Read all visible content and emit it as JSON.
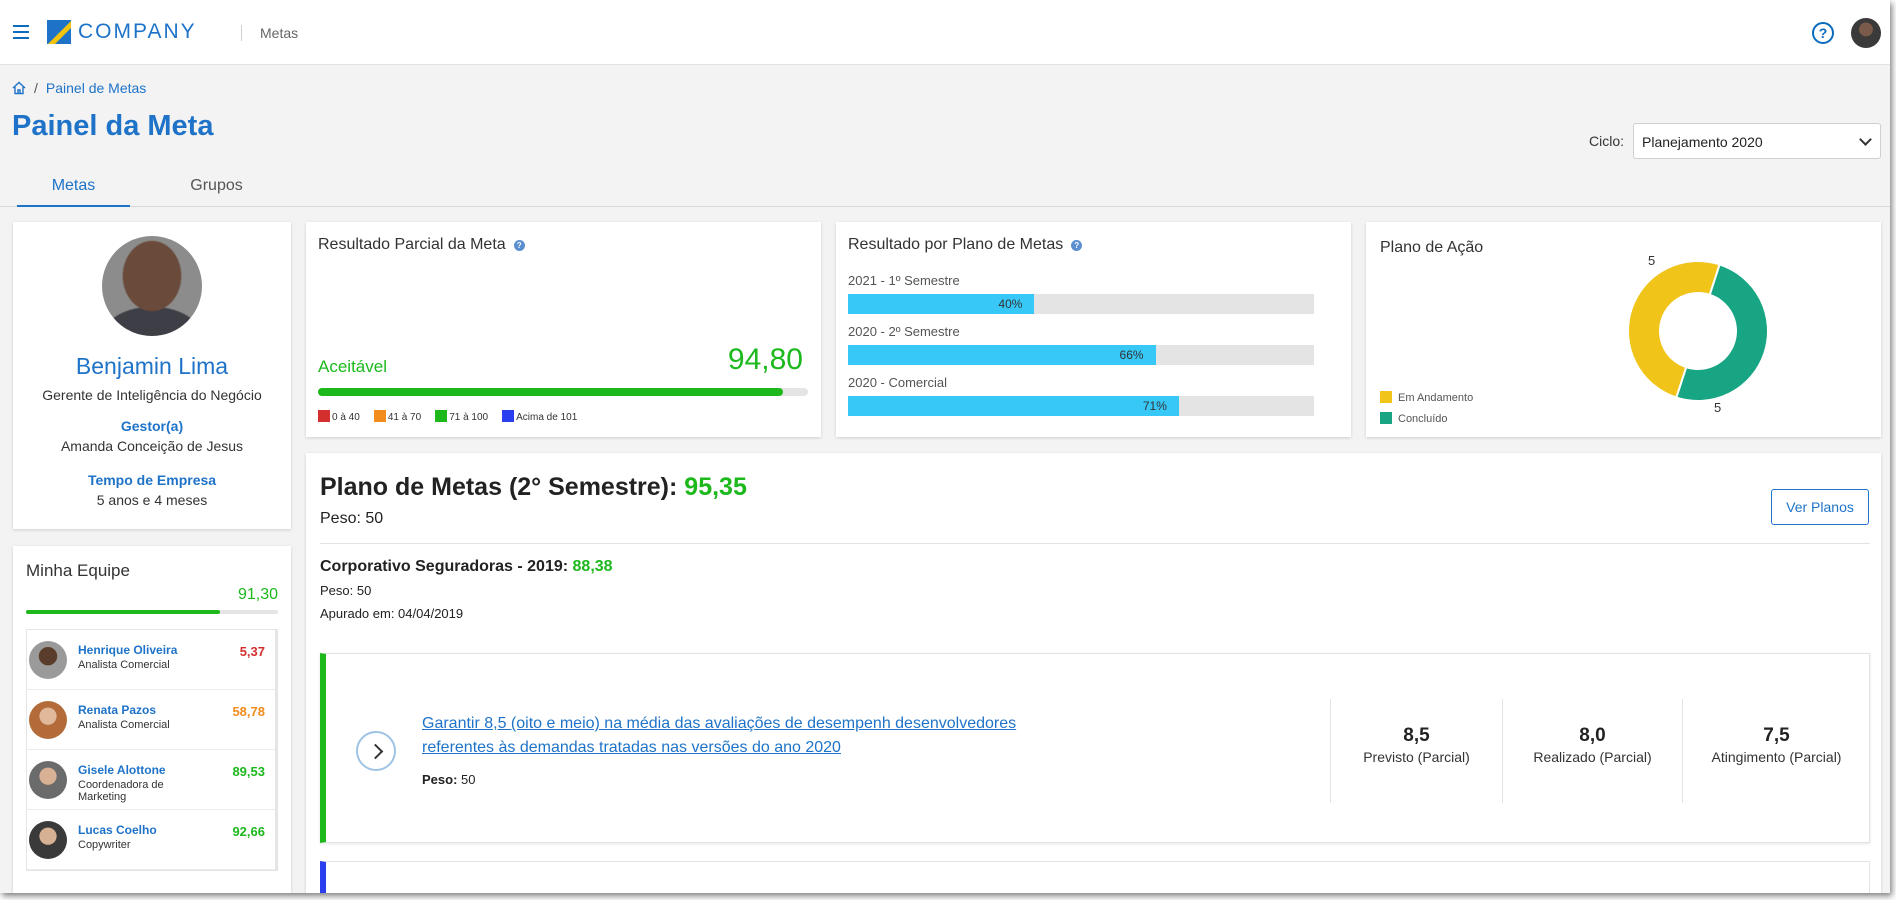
{
  "header": {
    "brand": "COMPANY",
    "module": "Metas"
  },
  "breadcrumb": {
    "current": "Painel de Metas"
  },
  "page": {
    "title": "Painel da Meta",
    "ciclo_label": "Ciclo:",
    "ciclo_value": "Planejamento 2020"
  },
  "tabs": [
    {
      "label": "Metas",
      "active": true
    },
    {
      "label": "Grupos",
      "active": false
    }
  ],
  "profile": {
    "name": "Benjamin Lima",
    "role": "Gerente de Inteligência do Negócio",
    "manager_label": "Gestor(a)",
    "manager_value": "Amanda Conceição de Jesus",
    "tenure_label": "Tempo de Empresa",
    "tenure_value": "5 anos e 4 meses"
  },
  "team": {
    "title": "Minha Equipe",
    "score": "91,30",
    "progress": 0.77,
    "members": [
      {
        "name": "Henrique Oliveira",
        "role": "Analista Comercial",
        "score": "5,37",
        "color": "#d32f2f"
      },
      {
        "name": "Renata Pazos",
        "role": "Analista Comercial",
        "score": "58,78",
        "color": "#f28c1c"
      },
      {
        "name": "Gisele Alottone",
        "role": "Coordenadora de Marketing",
        "score": "89,53",
        "color": "#1cb81c"
      },
      {
        "name": "Lucas Coelho",
        "role": "Copywriter",
        "score": "92,66",
        "color": "#1cb81c"
      }
    ]
  },
  "resultado_parcial": {
    "title": "Resultado Parcial da Meta",
    "status": "Aceitável",
    "value": "94,80",
    "progress": 0.948,
    "legend": [
      {
        "label": "0 à 40",
        "color": "#d32f2f"
      },
      {
        "label": "41 à 70",
        "color": "#f28c1c"
      },
      {
        "label": "71 à 100",
        "color": "#1cb81c"
      },
      {
        "label": "Acima de 101",
        "color": "#2a3ff0"
      }
    ]
  },
  "resultado_plano": {
    "title": "Resultado por Plano de Metas",
    "items": [
      {
        "label": "2021 - 1º Semestre",
        "pct_label": "40%",
        "value": 40
      },
      {
        "label": "2020 - 2º Semestre",
        "pct_label": "66%",
        "value": 66
      },
      {
        "label": "2020 - Comercial",
        "pct_label": "71%",
        "value": 71
      }
    ]
  },
  "plano_acao": {
    "title": "Plano de Ação",
    "legend": [
      {
        "label": "Em Andamento",
        "value": 5,
        "color": "#f0c419"
      },
      {
        "label": "Concluído",
        "value": 5,
        "color": "#17a583"
      }
    ],
    "label_top": "5",
    "label_bottom": "5"
  },
  "plano_metas": {
    "title": "Plano de Metas (2° Semestre):",
    "score": "95,35",
    "peso": "Peso: 50",
    "ver_planos": "Ver Planos",
    "corp_title": "Corporativo Seguradoras - 2019:",
    "corp_score": "88,38",
    "corp_peso": "Peso: 50",
    "corp_apurado": "Apurado em: 04/04/2019",
    "goal": {
      "text": "Garantir 8,5 (oito e meio) na média das avaliações de desempenh desenvolvedores referentes às demandas tratadas nas versões do ano 2020",
      "peso_label": "Peso:",
      "peso_value": "50",
      "previsto": "8,5",
      "previsto_label": "Previsto (Parcial)",
      "realizado": "8,0",
      "realizado_label": "Realizado (Parcial)",
      "atingimento": "7,5",
      "atingimento_label": "Atingimento (Parcial)"
    }
  },
  "colors": {
    "primary": "#1e73c8",
    "success": "#1cb81c",
    "bar": "#37c8f7"
  }
}
